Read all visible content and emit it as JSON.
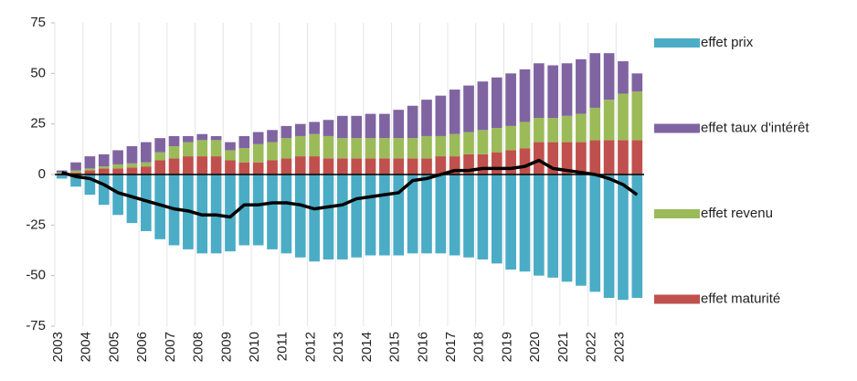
{
  "chart_data": {
    "type": "bar",
    "categories": [
      "2003",
      null,
      "2004",
      null,
      "2005",
      null,
      "2006",
      null,
      "2007",
      null,
      "2008",
      null,
      "2009",
      null,
      "2010",
      null,
      "2011",
      null,
      "2012",
      null,
      "2013",
      null,
      "2014",
      null,
      "2015",
      null,
      "2016",
      null,
      "2017",
      null,
      "2018",
      null,
      "2019",
      null,
      "2020",
      null,
      "2021",
      null,
      "2022",
      null,
      "2023",
      null
    ],
    "series": [
      {
        "name": "effet prix",
        "color": "#4bacc6",
        "values": [
          -2,
          -6,
          -10,
          -15,
          -20,
          -24,
          -28,
          -32,
          -35,
          -37,
          -39,
          -39,
          -38,
          -35,
          -35,
          -37,
          -39,
          -41,
          -43,
          -42,
          -42,
          -41,
          -40,
          -40,
          -40,
          -39,
          -39,
          -39,
          -40,
          -41,
          -42,
          -44,
          -47,
          -48,
          -50,
          -51,
          -53,
          -55,
          -58,
          -61,
          -62,
          -61
        ]
      },
      {
        "name": "effet taux d'intérêt",
        "color": "#8064a2",
        "values": [
          1,
          4,
          6,
          6,
          7,
          8.5,
          10,
          7,
          5,
          3,
          3,
          2,
          4,
          6,
          6,
          6,
          6,
          6,
          6,
          8,
          11,
          11,
          12,
          12,
          14,
          16,
          18,
          20,
          22,
          23,
          24,
          25,
          26,
          26,
          27,
          26,
          26,
          27,
          27,
          23,
          16,
          9
        ]
      },
      {
        "name": "effet revenu",
        "color": "#9bbb59",
        "values": [
          0.5,
          1,
          1,
          1,
          2,
          2,
          2,
          4,
          6,
          7,
          8,
          8,
          5,
          7,
          9,
          9,
          10,
          10,
          11,
          11,
          10,
          10,
          10,
          10,
          10,
          10,
          11,
          10,
          11,
          11,
          12,
          12,
          12,
          13,
          12,
          12,
          13,
          14,
          16,
          20,
          23,
          24
        ]
      },
      {
        "name": "effet maturité",
        "color": "#c0504d",
        "values": [
          0.5,
          1,
          2,
          3,
          3,
          3.5,
          4,
          7,
          8,
          9,
          9,
          9,
          7,
          6,
          6,
          7,
          8,
          9,
          9,
          8,
          8,
          8,
          8,
          8,
          8,
          8,
          8,
          9,
          9,
          10,
          10,
          11,
          12,
          13,
          16,
          16,
          16,
          16,
          17,
          17,
          17,
          17
        ]
      },
      {
        "type": "line",
        "color": "#000000",
        "values": [
          1,
          -1,
          -2,
          -5,
          -9,
          -11,
          -13,
          -15,
          -17,
          -18,
          -20,
          -20,
          -21,
          -15,
          -15,
          -14,
          -14,
          -15,
          -17,
          -16,
          -15,
          -12,
          -11,
          -10,
          -9,
          -3,
          -2,
          0,
          2,
          2,
          3,
          3,
          3,
          4,
          7,
          3,
          2,
          1,
          0,
          -2,
          -5,
          -10
        ]
      }
    ],
    "ylim": [
      -75,
      75
    ],
    "yticks": [
      75,
      50,
      25,
      0,
      -25,
      -50,
      -75
    ],
    "grid": false,
    "legend": "right"
  }
}
